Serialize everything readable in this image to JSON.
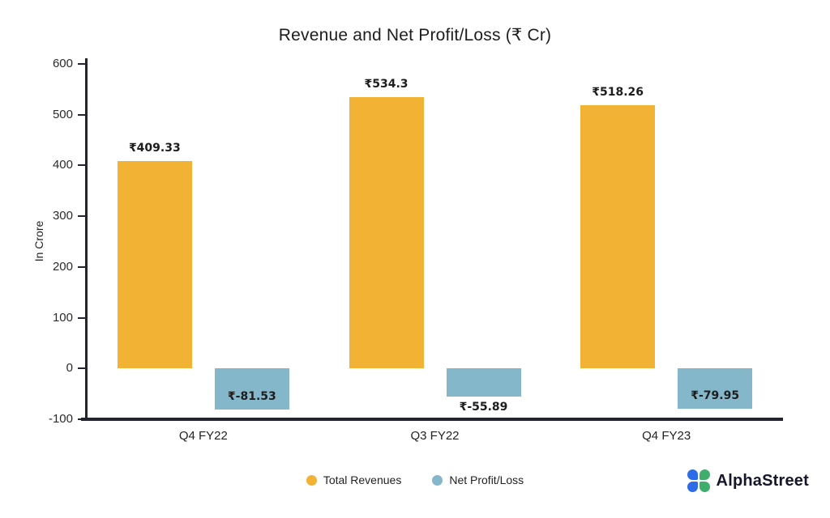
{
  "branding": {
    "logo_text": "AlphaStreet"
  },
  "chart_data": {
    "type": "bar",
    "title": "Revenue and Net Profit/Loss (₹ Cr)",
    "ylabel": "In Crore",
    "categories": [
      "Q4 FY22",
      "Q3 FY22",
      "Q4 FY23"
    ],
    "series": [
      {
        "name": "Total Revenues",
        "color": "#F2B233",
        "values": [
          409.33,
          534.3,
          518.26
        ],
        "labels": [
          "₹409.33",
          "₹534.3",
          "₹518.26"
        ]
      },
      {
        "name": "Net Profit/Loss",
        "color": "#85B7CB",
        "values": [
          -81.53,
          -55.89,
          -79.95
        ],
        "labels": [
          "₹-81.53",
          "₹-55.89",
          "₹-79.95"
        ]
      }
    ],
    "ylim": [
      -100,
      600
    ],
    "yticks": [
      600,
      500,
      400,
      300,
      200,
      100,
      0,
      -100
    ],
    "grid": false,
    "legend_position": "bottom"
  }
}
